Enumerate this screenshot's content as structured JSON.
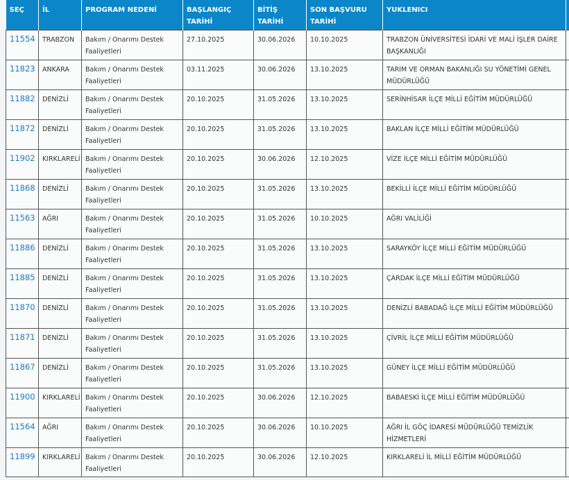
{
  "table": {
    "headers": [
      "SEÇ",
      "İL",
      "PROGRAM NEDENİ",
      "BAŞLANGIÇ TARİHİ",
      "BİTİŞ TARİHİ",
      "SON BAŞVURU TARİHİ",
      "YUKLENICI",
      ""
    ],
    "rows": [
      {
        "id": "11554",
        "il": "TRABZON",
        "program": "Bakım / Onarımı Destek Faaliyetleri",
        "start": "27.10.2025",
        "end": "30.06.2026",
        "deadline": "10.10.2025",
        "contractor": "TRABZON ÜNİVERSİTESİ İDARİ VE MALİ İŞLER DAİRE BAŞKANLIĞI"
      },
      {
        "id": "11823",
        "il": "ANKARA",
        "program": "Bakım / Onarımı Destek Faaliyetleri",
        "start": "03.11.2025",
        "end": "30.06.2026",
        "deadline": "13.10.2025",
        "contractor": "TARIM VE ORMAN BAKANLIĞI SU YÖNETİMİ GENEL MÜDÜRLÜĞÜ"
      },
      {
        "id": "11882",
        "il": "DENİZLİ",
        "program": "Bakım / Onarımı Destek Faaliyetleri",
        "start": "20.10.2025",
        "end": "31.05.2026",
        "deadline": "13.10.2025",
        "contractor": "SERİNHİSAR İLÇE MİLLİ EĞİTİM MÜDÜRLÜĞÜ"
      },
      {
        "id": "11872",
        "il": "DENİZLİ",
        "program": "Bakım / Onarımı Destek Faaliyetleri",
        "start": "20.10.2025",
        "end": "31.05.2026",
        "deadline": "13.10.2025",
        "contractor": "BAKLAN İLÇE MİLLİ EĞİTİM MÜDÜRLÜĞÜ"
      },
      {
        "id": "11902",
        "il": "KIRKLARELİ",
        "program": "Bakım / Onarımı Destek Faaliyetleri",
        "start": "20.10.2025",
        "end": "30.06.2026",
        "deadline": "12.10.2025",
        "contractor": "VİZE İLÇE MİLLİ EĞİTİM MÜDÜRLÜĞÜ"
      },
      {
        "id": "11868",
        "il": "DENİZLİ",
        "program": "Bakım / Onarımı Destek Faaliyetleri",
        "start": "20.10.2025",
        "end": "31.05.2026",
        "deadline": "13.10.2025",
        "contractor": "BEKİLLİ İLÇE MİLLİ EĞİTİM MÜDÜRLÜĞÜ"
      },
      {
        "id": "11563",
        "il": "AĞRI",
        "program": "Bakım / Onarımı Destek Faaliyetleri",
        "start": "20.10.2025",
        "end": "31.05.2026",
        "deadline": "10.10.2025",
        "contractor": "AĞRI VALİLİĞİ"
      },
      {
        "id": "11886",
        "il": "DENİZLİ",
        "program": "Bakım / Onarımı Destek Faaliyetleri",
        "start": "20.10.2025",
        "end": "31.05.2026",
        "deadline": "13.10.2025",
        "contractor": "SARAYKÖY İLÇE MİLLİ EĞİTİM MÜDÜRLÜĞÜ"
      },
      {
        "id": "11885",
        "il": "DENİZLİ",
        "program": "Bakım / Onarımı Destek Faaliyetleri",
        "start": "20.10.2025",
        "end": "31.05.2026",
        "deadline": "13.10.2025",
        "contractor": "ÇARDAK İLÇE MİLLİ EĞİTİM MÜDÜRLÜĞÜ"
      },
      {
        "id": "11870",
        "il": "DENİZLİ",
        "program": "Bakım / Onarımı Destek Faaliyetleri",
        "start": "20.10.2025",
        "end": "31.05.2026",
        "deadline": "13.10.2025",
        "contractor": "DENİZLİ BABADAĞ İLÇE MİLLİ EĞİTİM MÜDÜRLÜĞÜ"
      },
      {
        "id": "11871",
        "il": "DENİZLİ",
        "program": "Bakım / Onarımı Destek Faaliyetleri",
        "start": "20.10.2025",
        "end": "31.05.2026",
        "deadline": "13.10.2025",
        "contractor": "ÇİVRİL İLÇE MİLLİ EĞİTİM MÜDÜRLÜĞÜ"
      },
      {
        "id": "11867",
        "il": "DENİZLİ",
        "program": "Bakım / Onarımı Destek Faaliyetleri",
        "start": "20.10.2025",
        "end": "31.05.2026",
        "deadline": "13.10.2025",
        "contractor": "GÜNEY İLÇE MİLLİ EĞİTİM MÜDÜRLÜĞÜ"
      },
      {
        "id": "11900",
        "il": "KIRKLARELİ",
        "program": "Bakım / Onarımı Destek Faaliyetleri",
        "start": "20.10.2025",
        "end": "30.06.2026",
        "deadline": "12.10.2025",
        "contractor": "BABAESKİ İLÇE MİLLİ EĞİTİM MÜDÜRLÜĞÜ"
      },
      {
        "id": "11564",
        "il": "AĞRI",
        "program": "Bakım / Onarımı Destek Faaliyetleri",
        "start": "20.10.2025",
        "end": "30.06.2026",
        "deadline": "10.10.2025",
        "contractor": "AĞRI İL GÖÇ İDARESİ MÜDÜRLÜĞÜ TEMİZLİK HİZMETLERİ"
      },
      {
        "id": "11899",
        "il": "KIRKLARELİ",
        "program": "Bakım / Onarımı Destek Faaliyetleri",
        "start": "20.10.2025",
        "end": "30.06.2026",
        "deadline": "12.10.2025",
        "contractor": "KIRKLARELİ İL MİLLİ EĞİTİM MÜDÜRLÜĞÜ"
      }
    ]
  },
  "colors": {
    "header_bg": "#0a86c9",
    "link": "#1a7cc0"
  }
}
